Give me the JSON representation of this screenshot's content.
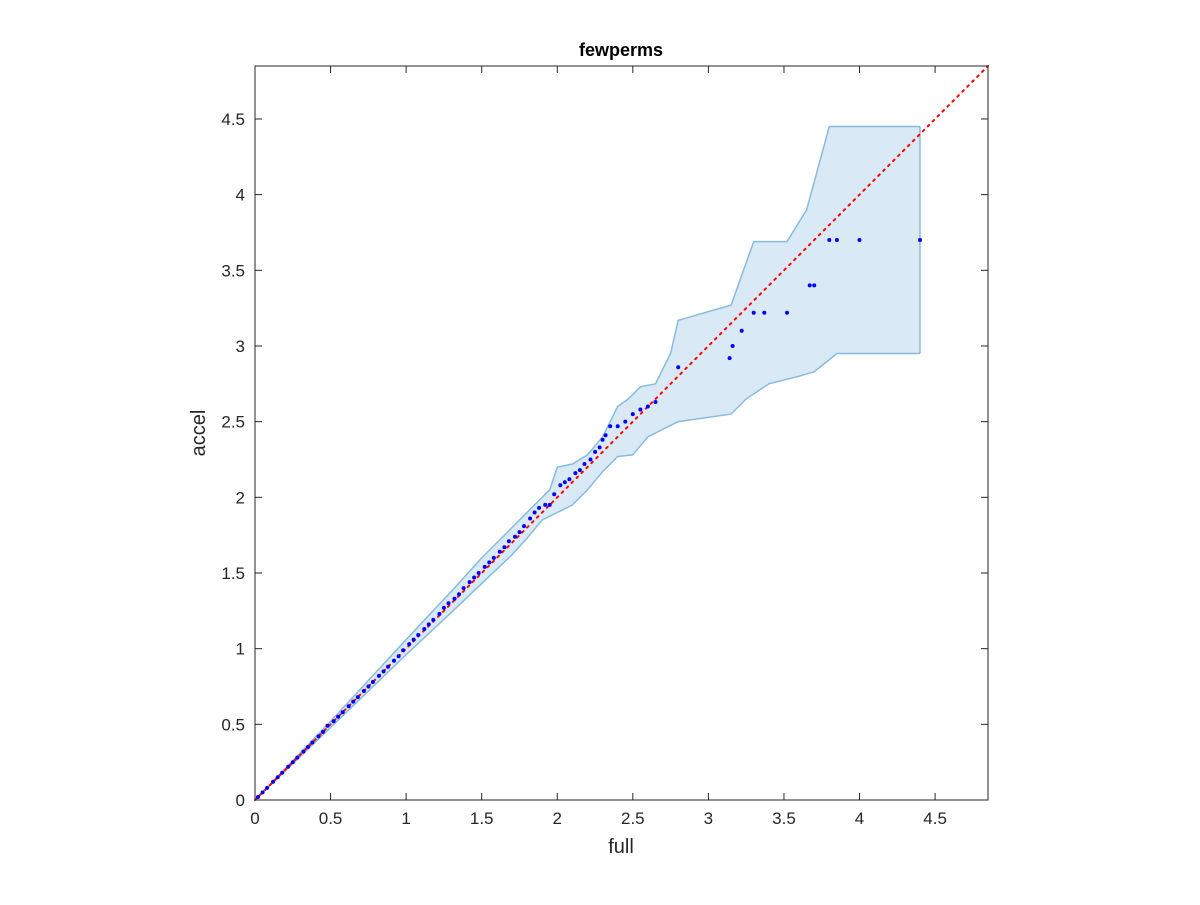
{
  "chart_data": {
    "type": "scatter",
    "title": "fewperms",
    "xlabel": "full",
    "ylabel": "accel",
    "xlim": [
      0,
      4.85
    ],
    "ylim": [
      0,
      4.85
    ],
    "xticks": [
      0,
      0.5,
      1,
      1.5,
      2,
      2.5,
      3,
      3.5,
      4,
      4.5
    ],
    "yticks": [
      0,
      0.5,
      1,
      1.5,
      2,
      2.5,
      3,
      3.5,
      4,
      4.5
    ],
    "xtick_labels": [
      "0",
      "0.5",
      "1",
      "1.5",
      "2",
      "2.5",
      "3",
      "3.5",
      "4",
      "4.5"
    ],
    "ytick_labels": [
      "0",
      "0.5",
      "1",
      "1.5",
      "2",
      "2.5",
      "3",
      "3.5",
      "4",
      "4.5"
    ],
    "grid": false,
    "colors": {
      "points": "#0000ff",
      "reference_line": "#ff0000",
      "band_fill": "#d9e9f5",
      "band_edge": "#88bbdd",
      "axes": "#262626"
    },
    "reference_line": {
      "style": "dotted",
      "points": [
        [
          0,
          0
        ],
        [
          4.85,
          4.85
        ]
      ]
    },
    "band": {
      "upper": [
        [
          0,
          0
        ],
        [
          0.5,
          0.52
        ],
        [
          1,
          1.06
        ],
        [
          1.3,
          1.38
        ],
        [
          1.5,
          1.6
        ],
        [
          1.7,
          1.8
        ],
        [
          1.85,
          1.95
        ],
        [
          1.95,
          2.05
        ],
        [
          2.0,
          2.2
        ],
        [
          2.1,
          2.22
        ],
        [
          2.2,
          2.28
        ],
        [
          2.3,
          2.4
        ],
        [
          2.4,
          2.6
        ],
        [
          2.47,
          2.65
        ],
        [
          2.55,
          2.73
        ],
        [
          2.65,
          2.75
        ],
        [
          2.75,
          2.95
        ],
        [
          2.8,
          3.17
        ],
        [
          3.15,
          3.27
        ],
        [
          3.25,
          3.55
        ],
        [
          3.3,
          3.69
        ],
        [
          3.52,
          3.69
        ],
        [
          3.65,
          3.9
        ],
        [
          3.8,
          4.45
        ],
        [
          4.4,
          4.45
        ]
      ],
      "lower": [
        [
          0,
          0
        ],
        [
          0.5,
          0.48
        ],
        [
          1,
          0.96
        ],
        [
          1.3,
          1.24
        ],
        [
          1.5,
          1.43
        ],
        [
          1.7,
          1.62
        ],
        [
          1.8,
          1.73
        ],
        [
          1.9,
          1.85
        ],
        [
          2.0,
          1.9
        ],
        [
          2.1,
          1.95
        ],
        [
          2.2,
          2.05
        ],
        [
          2.3,
          2.17
        ],
        [
          2.4,
          2.27
        ],
        [
          2.5,
          2.28
        ],
        [
          2.6,
          2.4
        ],
        [
          2.8,
          2.5
        ],
        [
          3.15,
          2.55
        ],
        [
          3.25,
          2.65
        ],
        [
          3.4,
          2.75
        ],
        [
          3.6,
          2.8
        ],
        [
          3.7,
          2.83
        ],
        [
          3.85,
          2.95
        ],
        [
          4.4,
          2.95
        ]
      ]
    },
    "series": [
      {
        "x": [
          0.02,
          0.05,
          0.08,
          0.12,
          0.15,
          0.18,
          0.22,
          0.25,
          0.28,
          0.32,
          0.35,
          0.38,
          0.42,
          0.45,
          0.48,
          0.52,
          0.55,
          0.58,
          0.62,
          0.65,
          0.68,
          0.72,
          0.75,
          0.78,
          0.82,
          0.85,
          0.88,
          0.92,
          0.95,
          0.98,
          1.02,
          1.05,
          1.08,
          1.12,
          1.15,
          1.18,
          1.22,
          1.25,
          1.28,
          1.32,
          1.35,
          1.38,
          1.42,
          1.45,
          1.48,
          1.52,
          1.55,
          1.58,
          1.62,
          1.65,
          1.68,
          1.72,
          1.75,
          1.78,
          1.82,
          1.85,
          1.88,
          1.92,
          1.95,
          1.98,
          2.02,
          2.05,
          2.08,
          2.12,
          2.15,
          2.18,
          2.22,
          2.25,
          2.28,
          2.3,
          2.32,
          2.35,
          2.4,
          2.45,
          2.5,
          2.55,
          2.6,
          2.65,
          2.8,
          3.14,
          3.16,
          3.22,
          3.3,
          3.37,
          3.52,
          3.67,
          3.7,
          3.8,
          3.85,
          4.0,
          4.4
        ],
        "y": [
          0.02,
          0.05,
          0.08,
          0.12,
          0.15,
          0.18,
          0.22,
          0.25,
          0.28,
          0.32,
          0.35,
          0.38,
          0.42,
          0.45,
          0.49,
          0.52,
          0.55,
          0.58,
          0.62,
          0.65,
          0.68,
          0.72,
          0.75,
          0.78,
          0.82,
          0.85,
          0.88,
          0.92,
          0.95,
          0.99,
          1.03,
          1.06,
          1.09,
          1.13,
          1.16,
          1.19,
          1.23,
          1.27,
          1.3,
          1.33,
          1.36,
          1.4,
          1.44,
          1.47,
          1.5,
          1.54,
          1.57,
          1.6,
          1.64,
          1.67,
          1.71,
          1.74,
          1.77,
          1.81,
          1.86,
          1.9,
          1.93,
          1.95,
          1.95,
          2.02,
          2.08,
          2.1,
          2.12,
          2.16,
          2.18,
          2.22,
          2.25,
          2.3,
          2.33,
          2.38,
          2.41,
          2.47,
          2.47,
          2.5,
          2.55,
          2.58,
          2.6,
          2.63,
          2.86,
          2.92,
          3.0,
          3.1,
          3.22,
          3.22,
          3.22,
          3.4,
          3.4,
          3.7,
          3.7,
          3.7,
          3.7
        ]
      }
    ]
  }
}
